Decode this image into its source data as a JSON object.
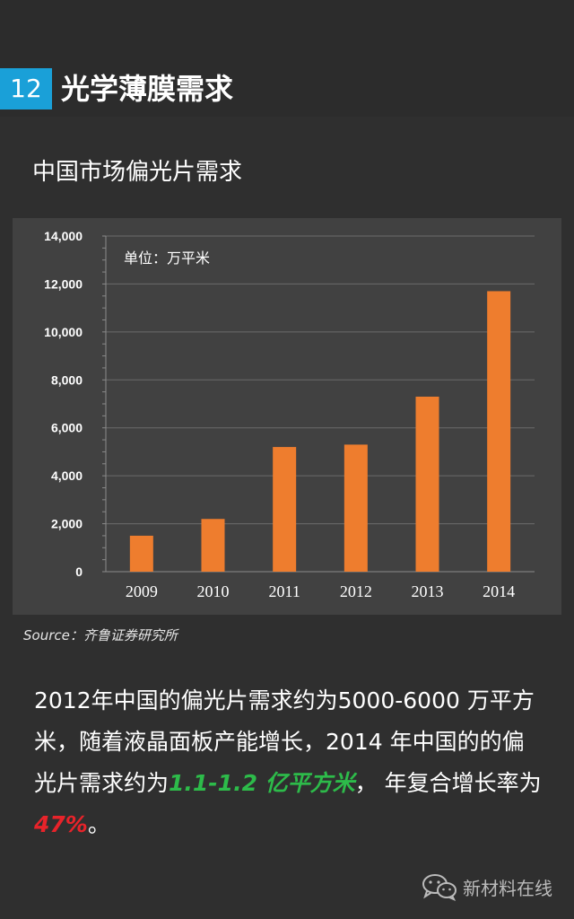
{
  "header": {
    "section_number": "12",
    "title": "光学薄膜需求"
  },
  "chart_title": "中国市场偏光片需求",
  "chart_data": {
    "type": "bar",
    "categories": [
      "2009",
      "2010",
      "2011",
      "2012",
      "2013",
      "2014"
    ],
    "values": [
      1500,
      2200,
      5200,
      5300,
      7300,
      11700
    ],
    "ylim": [
      0,
      14000
    ],
    "yticks": [
      0,
      2000,
      4000,
      6000,
      8000,
      10000,
      12000,
      14000
    ],
    "ytick_labels": [
      "0",
      "2,000",
      "4,000",
      "6,000",
      "8,000",
      "10,000",
      "12,000",
      "14,000"
    ],
    "unit_annotation": "单位：万平米",
    "grid": true,
    "bar_color": "#ee7d2e"
  },
  "source": {
    "label": "Source：",
    "text": "齐鲁证券研究所"
  },
  "summary": {
    "part1": "2012年中国的偏光片需求约为5000-6000 万平方米，随着液晶面板产能增长，2014 年中国的的偏光片需求约为",
    "highlight1": "1.1-1.2 亿平方米",
    "part2": "，  年复合增长率为",
    "highlight2": "47%",
    "part3": "。"
  },
  "footer": {
    "brand": "新材料在线",
    "icon": "wechat-icon"
  },
  "colors": {
    "accent_blue": "#1aa0d8",
    "highlight_green": "#2dbb4a",
    "highlight_red": "#e8232a"
  }
}
